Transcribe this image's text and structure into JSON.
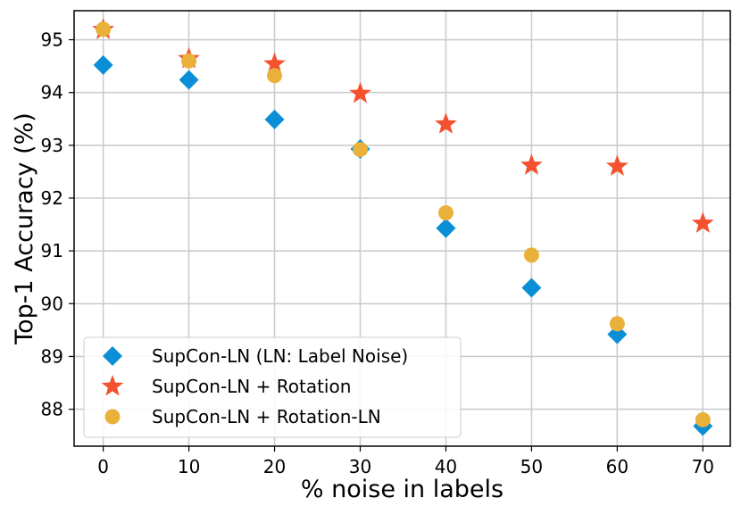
{
  "chart_data": {
    "type": "scatter",
    "title": "",
    "xlabel": "% noise in labels",
    "ylabel": "Top-1 Accuracy (%)",
    "x": [
      0,
      10,
      20,
      30,
      40,
      50,
      60,
      70
    ],
    "xticks": [
      "0",
      "10",
      "20",
      "30",
      "40",
      "50",
      "60",
      "70"
    ],
    "yticks": [
      "88",
      "89",
      "90",
      "91",
      "92",
      "93",
      "94",
      "95"
    ],
    "xlim": [
      -3.4,
      73.2
    ],
    "ylim": [
      87.3,
      95.55
    ],
    "grid": true,
    "legend_position": "lower-left",
    "series": [
      {
        "name": "SupCon-LN (LN: Label Noise)",
        "marker": "diamond",
        "color": "#0a8fd6",
        "values": [
          94.52,
          94.24,
          93.49,
          92.93,
          91.43,
          90.3,
          89.42,
          87.68
        ]
      },
      {
        "name": "SupCon-LN + Rotation",
        "marker": "star",
        "color": "#f4512f",
        "values": [
          95.19,
          94.64,
          94.54,
          93.98,
          93.4,
          92.62,
          92.6,
          91.52
        ]
      },
      {
        "name": "SupCon-LN + Rotation-LN",
        "marker": "circle",
        "color": "#e9b03a",
        "values": [
          95.2,
          94.6,
          94.32,
          92.92,
          91.72,
          90.92,
          89.62,
          87.8
        ]
      }
    ]
  }
}
